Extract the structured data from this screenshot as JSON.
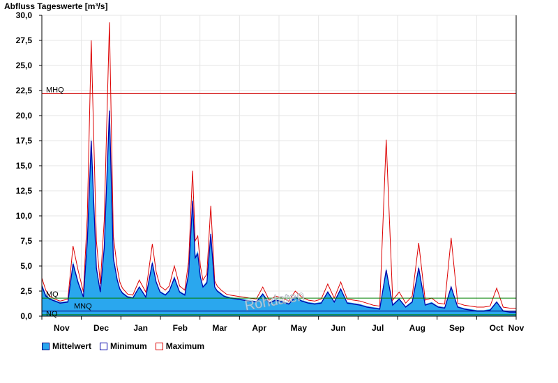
{
  "chart_data": {
    "type": "area",
    "title": "Abfluss Tageswerte [m³/s]",
    "ylim": [
      0,
      30
    ],
    "yticks": [
      "0,0",
      "2,5",
      "5,0",
      "7,5",
      "10,0",
      "12,5",
      "15,0",
      "17,5",
      "20,0",
      "22,5",
      "25,0",
      "27,5",
      "30,0"
    ],
    "yticks_values": [
      0,
      2.5,
      5,
      7.5,
      10,
      12.5,
      15,
      17.5,
      20,
      22.5,
      25,
      27.5,
      30
    ],
    "months": [
      "Nov",
      "Dec",
      "Jan",
      "Feb",
      "Mar",
      "Apr",
      "May",
      "Jun",
      "Jul",
      "Aug",
      "Sep",
      "Oct",
      "Nov"
    ],
    "grid": true,
    "legend_position": "bottom-left",
    "reference_lines": [
      {
        "label": "MHQ",
        "value": 22.2,
        "color": "#d00000"
      },
      {
        "label": "MQ",
        "value": 1.8,
        "color": "#008000"
      },
      {
        "label": "MNQ",
        "value": 0.5,
        "color": "#000080"
      },
      {
        "label": "NQ",
        "value": 0.15,
        "color": "#008000"
      }
    ],
    "watermark": "Rohdaten",
    "series": [
      {
        "name": "Mittelwert",
        "color": "#2aa7ee",
        "x": [
          0,
          3,
          6,
          10,
          14,
          20,
          24,
          28,
          32,
          35,
          38,
          42,
          45,
          48,
          52,
          55,
          58,
          60,
          62,
          64,
          66,
          70,
          75,
          80,
          85,
          88,
          91,
          95,
          98,
          102,
          106,
          110,
          113,
          116,
          118,
          120,
          122,
          124,
          127,
          130,
          133,
          135,
          138,
          140,
          142,
          145,
          150,
          155,
          160,
          165,
          170,
          175,
          180,
          185,
          190,
          195,
          200,
          205,
          210,
          215,
          220,
          225,
          230,
          235,
          240,
          245,
          250,
          255,
          260,
          265,
          270,
          275,
          280,
          285,
          290,
          295,
          300,
          305,
          310,
          315,
          320,
          325,
          330,
          335,
          340,
          345,
          350,
          355,
          360,
          365
        ],
        "values": [
          3.2,
          2.2,
          1.8,
          1.6,
          1.4,
          1.5,
          5.5,
          3.5,
          2.0,
          8.0,
          18.0,
          5.0,
          2.5,
          7.0,
          21.0,
          6.0,
          3.8,
          2.8,
          2.4,
          2.2,
          2.0,
          1.9,
          3.0,
          2.0,
          5.5,
          3.5,
          2.5,
          2.2,
          2.6,
          4.0,
          2.5,
          2.2,
          4.5,
          12.0,
          6.0,
          6.5,
          4.0,
          3.0,
          3.5,
          8.5,
          3.0,
          2.6,
          2.3,
          2.1,
          2.0,
          1.9,
          1.8,
          1.7,
          1.6,
          1.5,
          2.3,
          1.4,
          1.7,
          1.5,
          1.3,
          2.0,
          1.6,
          1.4,
          1.3,
          1.4,
          2.5,
          1.5,
          2.8,
          1.4,
          1.3,
          1.2,
          1.0,
          0.9,
          0.8,
          4.8,
          1.2,
          1.8,
          1.0,
          1.5,
          5.0,
          1.2,
          1.4,
          1.0,
          0.9,
          3.0,
          1.0,
          0.8,
          0.7,
          0.6,
          0.6,
          0.7,
          1.5,
          0.6,
          0.5,
          0.5
        ]
      },
      {
        "name": "Minimum",
        "color": "#0000aa",
        "x": [
          0,
          3,
          6,
          10,
          14,
          20,
          24,
          28,
          32,
          35,
          38,
          42,
          45,
          48,
          52,
          55,
          58,
          60,
          62,
          64,
          66,
          70,
          75,
          80,
          85,
          88,
          91,
          95,
          98,
          102,
          106,
          110,
          113,
          116,
          118,
          120,
          122,
          124,
          127,
          130,
          133,
          135,
          138,
          140,
          142,
          145,
          150,
          155,
          160,
          165,
          170,
          175,
          180,
          185,
          190,
          195,
          200,
          205,
          210,
          215,
          220,
          225,
          230,
          235,
          240,
          245,
          250,
          255,
          260,
          265,
          270,
          275,
          280,
          285,
          290,
          295,
          300,
          305,
          310,
          315,
          320,
          325,
          330,
          335,
          340,
          345,
          350,
          355,
          360,
          365
        ],
        "values": [
          3.0,
          2.0,
          1.7,
          1.5,
          1.3,
          1.4,
          5.2,
          3.3,
          1.9,
          7.5,
          17.5,
          4.8,
          2.4,
          6.8,
          20.5,
          5.8,
          3.6,
          2.7,
          2.3,
          2.1,
          1.9,
          1.8,
          2.9,
          1.9,
          5.3,
          3.4,
          2.4,
          2.1,
          2.5,
          3.8,
          2.4,
          2.1,
          4.3,
          11.5,
          5.8,
          6.2,
          3.9,
          2.9,
          3.3,
          8.2,
          2.9,
          2.5,
          2.2,
          2.0,
          1.9,
          1.8,
          1.7,
          1.6,
          1.5,
          1.4,
          2.2,
          1.3,
          1.6,
          1.4,
          1.2,
          1.9,
          1.5,
          1.3,
          1.2,
          1.3,
          2.4,
          1.4,
          2.7,
          1.3,
          1.2,
          1.1,
          0.9,
          0.8,
          0.7,
          4.6,
          1.1,
          1.7,
          0.9,
          1.4,
          4.8,
          1.1,
          1.3,
          0.9,
          0.8,
          2.9,
          0.9,
          0.7,
          0.6,
          0.5,
          0.5,
          0.6,
          1.4,
          0.5,
          0.4,
          0.4
        ]
      },
      {
        "name": "Maximum",
        "color": "#dd0000",
        "x": [
          0,
          3,
          6,
          10,
          14,
          20,
          24,
          28,
          32,
          35,
          38,
          42,
          45,
          48,
          52,
          55,
          58,
          60,
          62,
          64,
          66,
          70,
          75,
          80,
          85,
          88,
          91,
          95,
          98,
          102,
          106,
          110,
          113,
          116,
          118,
          120,
          122,
          124,
          127,
          130,
          133,
          135,
          138,
          140,
          142,
          145,
          150,
          155,
          160,
          165,
          170,
          175,
          180,
          185,
          190,
          195,
          200,
          205,
          210,
          215,
          220,
          225,
          230,
          235,
          240,
          245,
          250,
          255,
          260,
          265,
          270,
          275,
          280,
          285,
          290,
          295,
          300,
          305,
          310,
          315,
          320,
          325,
          330,
          335,
          340,
          345,
          350,
          355,
          360,
          365
        ],
        "values": [
          3.8,
          2.6,
          2.0,
          1.7,
          1.5,
          1.7,
          7.0,
          4.5,
          2.4,
          10.0,
          27.5,
          7.5,
          3.2,
          9.5,
          29.3,
          8.0,
          4.8,
          3.4,
          2.8,
          2.5,
          2.2,
          2.1,
          3.6,
          2.4,
          7.2,
          4.4,
          3.0,
          2.6,
          3.0,
          5.0,
          3.0,
          2.6,
          5.5,
          14.5,
          7.5,
          8.0,
          5.0,
          3.6,
          4.2,
          11.0,
          3.5,
          3.0,
          2.6,
          2.4,
          2.2,
          2.1,
          2.0,
          1.9,
          1.8,
          1.7,
          2.9,
          1.6,
          2.0,
          1.8,
          1.5,
          2.5,
          1.9,
          1.6,
          1.5,
          1.7,
          3.2,
          1.8,
          3.4,
          1.7,
          1.6,
          1.5,
          1.3,
          1.1,
          1.0,
          17.6,
          1.6,
          2.4,
          1.3,
          2.0,
          7.3,
          1.6,
          1.8,
          1.3,
          1.2,
          7.8,
          1.3,
          1.1,
          1.0,
          0.9,
          0.9,
          1.0,
          2.8,
          0.9,
          0.8,
          0.8
        ]
      }
    ]
  }
}
